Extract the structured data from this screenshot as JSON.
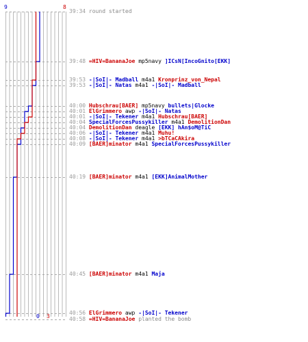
{
  "colors": {
    "team_a": "#0000cc",
    "team_b": "#cc0000",
    "grid": "#b9b9b9",
    "dash": "#a8a8a8",
    "time": "#9a9a9a",
    "weapon": "#000000",
    "note": "#888888"
  },
  "team_a_start": "9",
  "team_b_start": "8",
  "team_a_end": "0",
  "team_b_end": "3",
  "events": [
    {
      "time": "39:34",
      "note": "round started"
    },
    {
      "time": "39:48",
      "killer": "=HIV=BananaJoe",
      "killer_team": "b",
      "weapon": "mp5navy",
      "victim": "]ICsN[IncoGnito[EKK]",
      "victim_team": "a"
    },
    {
      "time": "39:53",
      "killer": "-|SoI|- Madball",
      "killer_team": "a",
      "weapon": "m4a1",
      "victim": "Kronprinz_von_Nepal",
      "victim_team": "b"
    },
    {
      "time": "39:53",
      "killer": "-|SoI|- Natas",
      "killer_team": "a",
      "weapon": "m4a1",
      "victim": "-|SoI|- Madball",
      "victim_team": "a"
    },
    {
      "time": "40:00",
      "killer": "Hubschrau[BAER]",
      "killer_team": "b",
      "weapon": "mp5navy",
      "victim": "bullets|Glocke",
      "victim_team": "a"
    },
    {
      "time": "40:01",
      "killer": "ElGrimmero",
      "killer_team": "b",
      "weapon": "awp",
      "victim": "-|SoI|- Natas",
      "victim_team": "a"
    },
    {
      "time": "40:01",
      "killer": "-|SoI|- Tekener",
      "killer_team": "a",
      "weapon": "m4a1",
      "victim": "Hubschrau[BAER]",
      "victim_team": "b"
    },
    {
      "time": "40:04",
      "killer": "SpecialForcesPussykiller",
      "killer_team": "a",
      "weapon": "m4a1",
      "victim": "DemolitionDan",
      "victim_team": "b"
    },
    {
      "time": "40:04",
      "killer": "DemolitionDan",
      "killer_team": "b",
      "weapon": "deagle",
      "victim": "[EKK] hAn$oM@TiC",
      "victim_team": "a"
    },
    {
      "time": "40:06",
      "killer": "-|SoI|- Tekener",
      "killer_team": "a",
      "weapon": "m4a1",
      "victim": "Muhu!",
      "victim_team": "b"
    },
    {
      "time": "40:08",
      "killer": "-|SoI|- Tekener",
      "killer_team": "a",
      "weapon": "m4a1",
      "victim": ">bTCaCAkira",
      "victim_team": "b"
    },
    {
      "time": "40:09",
      "killer": "[BAER]minator",
      "killer_team": "b",
      "weapon": "m4a1",
      "victim": "SpecialForcesPussykiller",
      "victim_team": "a"
    },
    {
      "time": "40:19",
      "killer": "[BAER]minator",
      "killer_team": "b",
      "weapon": "m4a1",
      "victim": "[EKK]AnimalMother",
      "victim_team": "a"
    },
    {
      "time": "40:45",
      "killer": "[BAER]minator",
      "killer_team": "b",
      "weapon": "m4a1",
      "victim": "Maja",
      "victim_team": "a"
    },
    {
      "time": "40:56",
      "killer": "ElGrimmero",
      "killer_team": "b",
      "weapon": "awp",
      "victim": "-|SoI|- Tekener",
      "victim_team": "a"
    },
    {
      "time": "40:58",
      "killer": "=HIV=BananaJoe",
      "killer_team": "b",
      "note": "planted the bomb"
    }
  ]
}
